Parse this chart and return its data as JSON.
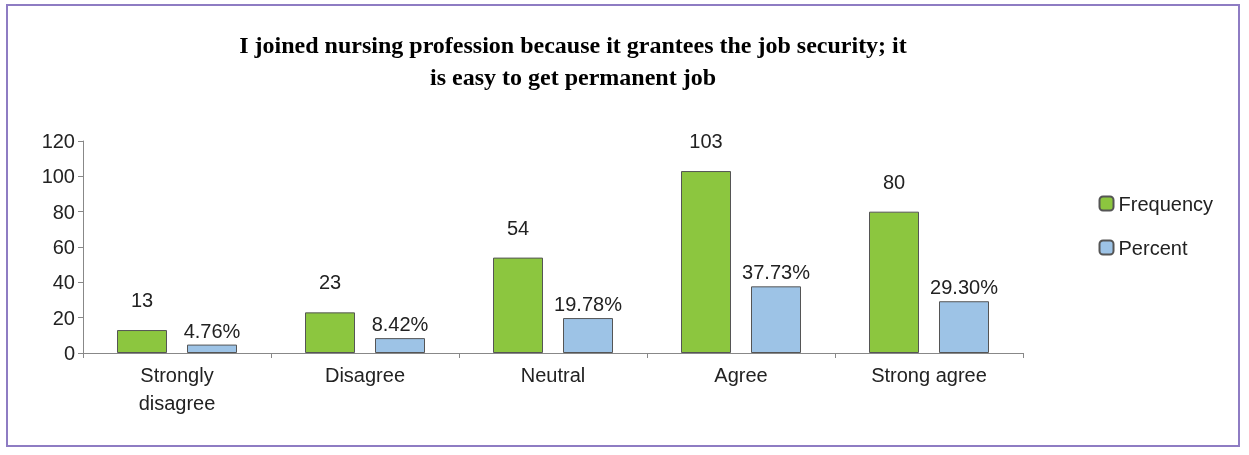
{
  "chart_data": {
    "type": "bar",
    "title": "I joined nursing profession because it grantees the job security; it\nis easy to get permanent job",
    "categories": [
      "Strongly\ndisagree",
      "Disagree",
      "Neutral",
      "Agree",
      "Strong agree"
    ],
    "series": [
      {
        "name": "Frequency",
        "color": "#8cc63f",
        "values": [
          13,
          23,
          54,
          103,
          80
        ],
        "value_labels": [
          "13",
          "23",
          "54",
          "103",
          "80"
        ]
      },
      {
        "name": "Percent",
        "color": "#9dc3e6",
        "values": [
          4.76,
          8.42,
          19.78,
          37.73,
          29.3
        ],
        "value_labels": [
          "4.76%",
          "8.42%",
          "19.78%",
          "37.73%",
          "29.30%"
        ]
      }
    ],
    "ylim": [
      0,
      120
    ],
    "yticks": [
      0,
      20,
      40,
      60,
      80,
      100,
      120
    ],
    "grid": false,
    "legend": "right"
  }
}
